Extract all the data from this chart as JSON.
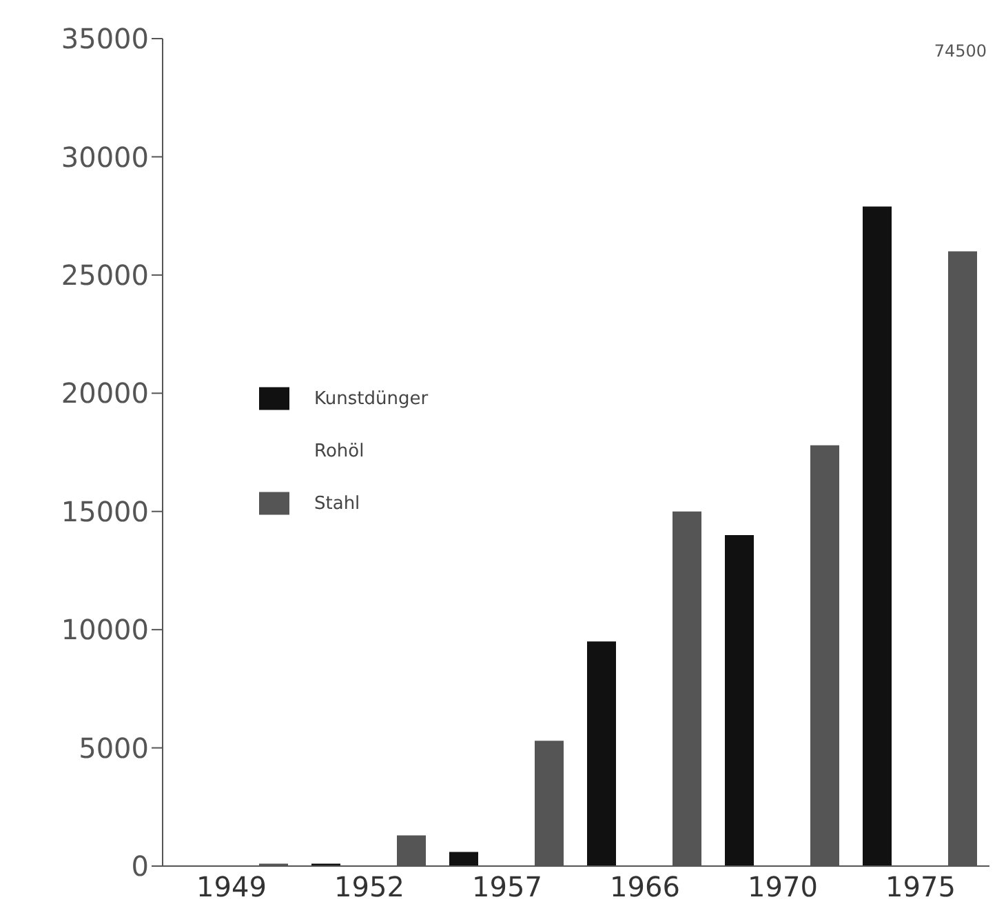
{
  "chart_data": {
    "type": "bar",
    "categories": [
      "1949",
      "1952",
      "1957",
      "1966",
      "1970",
      "1975"
    ],
    "series": [
      {
        "name": "Kunstdünger",
        "color": "#111111",
        "values": [
          0,
          100,
          600,
          9500,
          14000,
          27900
        ]
      },
      {
        "name": "Rohöl",
        "values": [
          null,
          null,
          null,
          null,
          null,
          null
        ]
      },
      {
        "name": "Stahl",
        "color": "#555555",
        "values": [
          100,
          1300,
          5300,
          15000,
          17800,
          26000
        ]
      }
    ],
    "ylim": [
      0,
      35000
    ],
    "yticks": [
      0,
      5000,
      10000,
      15000,
      20000,
      25000,
      30000,
      35000
    ],
    "grid": false,
    "legend": "left",
    "annotations": [
      "74500"
    ]
  }
}
